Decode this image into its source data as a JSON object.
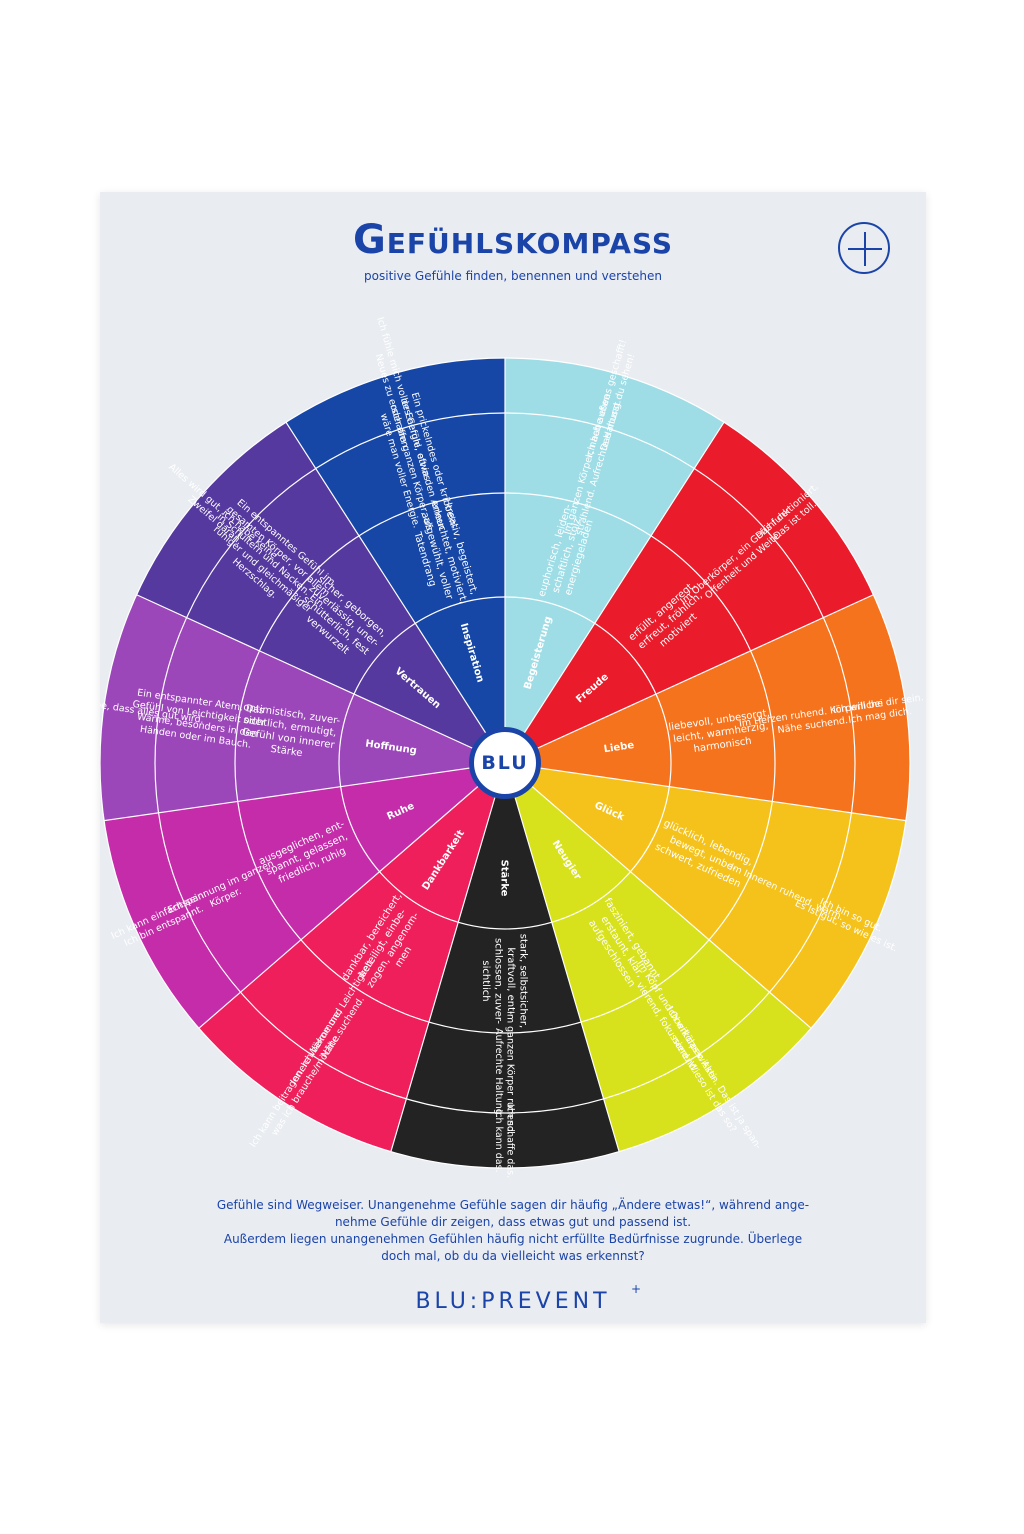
{
  "header": {
    "title": "Gefühlskompass",
    "subtitle": "positive Gefühle finden, benennen und verstehen"
  },
  "badge": {
    "icon": "plus-circle-icon"
  },
  "hub_label": "BLU",
  "wheel": [
    {
      "name": "Begeisterung",
      "color": "#9fdde6",
      "text_color": "#ffffff",
      "words": "euphorisch, leiden-|schaftlich, stolz,|energiegeladen",
      "body": "Im ganzen Körper, nach außen|strahlend. Aufrechte Haltung.",
      "thought": "Ich habe etwas geschafft!|Das musst du sehen!"
    },
    {
      "name": "Freude",
      "color": "#ea1b2a",
      "text_color": "#ffffff",
      "words": "erfüllt, angeregt,|erfreut, fröhlich,|motiviert",
      "body": "Im Oberkörper, ein Gefühl der|Offenheit und Weite.",
      "thought": "Das funktioniert.|Das ist toll."
    },
    {
      "name": "Liebe",
      "color": "#f5731d",
      "text_color": "#ffffff",
      "words": "liebevoll, unbesorgt,|leicht, warmherzig,|harmonisch",
      "body": "Im Herzen ruhend. Körperliche|Nähe suchend.",
      "thought": "Ich will bei dir sein.|Ich mag dich."
    },
    {
      "name": "Glück",
      "color": "#f4c21a",
      "text_color": "#ffffff",
      "words": "glücklich, lebendig,|bewegt, unbe-|schwert, zufrieden",
      "body": "Im Inneren ruhend, warm.",
      "thought": "Ich bin so gut.|Es ist gut, so wie es ist."
    },
    {
      "name": "Neugier",
      "color": "#d7e21c",
      "text_color": "#ffffff",
      "words": "fasziniert, gebannt,|erstaunt, klar,|aufgeschlossen",
      "body": "Im Kopf und Oberkörper. Akti-|vierend, fokussierend.",
      "thought": "Ich will das wissen. Das ist ja span-|nend. Wieso ist das so?"
    },
    {
      "name": "Stärke",
      "color": "#232323",
      "text_color": "#ffffff",
      "words": "stark, selbstsicher,|kraftvoll, ent-|schlossen, zuver-|sichtlich",
      "body": "Im ganzen Körper ruhend.|Aufrechte Haltung.",
      "thought": "Ich schaffe das.|Ich kann das."
    },
    {
      "name": "Dankbarkeit",
      "color": "#ee1f5a",
      "text_color": "#ffffff",
      "words": "dankbar, bereichert,|beteiligt, einbe-|zogen, angenom-|men",
      "body": "Innere Wärme und Leichtigkeit.|Nähe suchend.",
      "thought": "Ich kann beitragen. Ich bekomme,|was ich brauche/möchte."
    },
    {
      "name": "Ruhe",
      "color": "#c42ca9",
      "text_color": "#ffffff",
      "words": "ausgeglichen, ent-|spannt, gelassen,|friedlich, ruhig",
      "body": "Entspannung im ganzen|Körper.",
      "thought": "Ich kann einfach sein.|Ich bin entspannt."
    },
    {
      "name": "Hoffnung",
      "color": "#9b47b9",
      "text_color": "#ffffff",
      "words": "optimistisch, zuver-|sichtlich, ermutigt,|Gefühl von innerer|Stärke",
      "body": "Ein entspannter Atem. Das|Gefühl von Leichtigkeit oder|Wärme, besonders in den|Händen oder im Bauch.",
      "thought": "Ich glaube, dass alles gut wird."
    },
    {
      "name": "Vertrauen",
      "color": "#55399f",
      "text_color": "#ffffff",
      "words": "sicher, geborgen,|zuverlässig, uner-|schütterlich, fest|verwurzelt",
      "body": "Ein entspanntes Gefühl im|gesamten Körper, vor allem|in Schultern und Nacken. Ein|ruhiger und gleichmäßiger|Herzschlag.",
      "thought": "Alles wird gut, ich habe keine|Zweifel daran."
    },
    {
      "name": "Inspiration",
      "color": "#1747a6",
      "text_color": "#ffffff",
      "words": "kreativ, begeistert,|erleuchtet, motiviert,|aufgewühlt, voller|Tatendrang",
      "body": "Ein prickelndes oder kribbeln-|des Gefühl, oft in den Armen|oder am ganzen Körper, als|wäre man voller Energie.",
      "thought": "Ich fühle mich voller Energie, etwas|Neues zu erschaffen."
    }
  ],
  "footer": {
    "line1": "Gefühle sind Wegweiser. Unangenehme Gefühle sagen dir häufig „Ändere etwas!“, während ange-",
    "line2": "nehme Gefühle dir zeigen, dass etwas gut und passend ist.",
    "line3": "Außerdem liegen unangenehmen Gefühlen häufig nicht erfüllte Bedürfnisse zugrunde. Überlege",
    "line4": "doch mal, ob du da vielleicht was erkennst?"
  },
  "brand": {
    "name": "BLU:PREVENT",
    "mark": "+"
  },
  "colors": {
    "brand_blue": "#1b44a8",
    "poster_bg": "#e9ecf1"
  }
}
